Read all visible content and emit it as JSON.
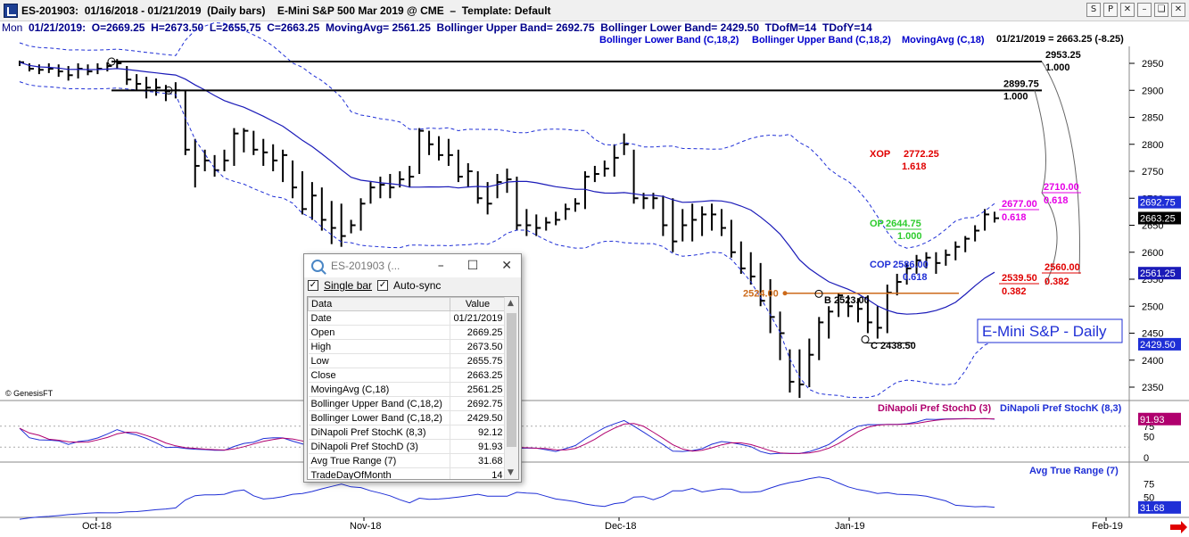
{
  "window": {
    "title": "ES-201903:  01/16/2018 - 01/21/2019  (Daily bars)    E-Mini S&P 500 Mar 2019 @ CME  –  Template: Default",
    "buttons": [
      "S",
      "P",
      "✕",
      "–",
      "❏",
      "✕"
    ]
  },
  "infobar": {
    "day": "Mon",
    "text": "  01/21/2019:  O=2669.25  H=2673.50  L=2655.75  C=2663.25  MovingAvg= 2561.25  Bollinger Upper Band= 2692.75  Bollinger Lower Band= 2429.50  TDofM=14  TDofY=14"
  },
  "legend": {
    "lower": "Bollinger Lower Band (C,18,2)",
    "upper": "Bollinger Upper Band (C,18,2)",
    "ma": "MovingAvg (C,18)",
    "last": "01/21/2019 = 2663.25 (-8.25)"
  },
  "watermark": "© GenesisFT",
  "colors": {
    "price": "#000000",
    "band": "#1f2fd6",
    "ma": "#1a1ab8",
    "fib_red": "#e00000",
    "fib_green": "#2ecc2e",
    "fib_magenta": "#e600e6",
    "stoch_k": "#1f2fd6",
    "stoch_d": "#b0006e",
    "orange": "#cc6a1a"
  },
  "chart_data": [
    {
      "type": "ohlc",
      "title": "E-Mini S&P - Daily",
      "y_ticks": [
        2350,
        2400,
        2450,
        2500,
        2550,
        2600,
        2650,
        2700,
        2750,
        2800,
        2850,
        2900,
        2950
      ],
      "ylim": [
        2325,
        2975
      ],
      "x_labels": [
        "Oct-18",
        "Nov-18",
        "Dec-18",
        "Jan-19",
        "Feb-19"
      ],
      "bars": [
        [
          2955,
          2945,
          2952
        ],
        [
          2950,
          2935,
          2940
        ],
        [
          2948,
          2930,
          2938
        ],
        [
          2950,
          2932,
          2940
        ],
        [
          2948,
          2925,
          2935
        ],
        [
          2945,
          2918,
          2928
        ],
        [
          2950,
          2922,
          2940
        ],
        [
          2948,
          2928,
          2935
        ],
        [
          2950,
          2930,
          2940
        ],
        [
          2952,
          2935,
          2945
        ],
        [
          2958,
          2940,
          2950
        ],
        [
          2945,
          2910,
          2920
        ],
        [
          2930,
          2900,
          2912
        ],
        [
          2925,
          2885,
          2905
        ],
        [
          2922,
          2890,
          2905
        ],
        [
          2910,
          2880,
          2898
        ],
        [
          2915,
          2885,
          2900
        ],
        [
          2900,
          2780,
          2790
        ],
        [
          2810,
          2720,
          2760
        ],
        [
          2790,
          2750,
          2770
        ],
        [
          2780,
          2740,
          2752
        ],
        [
          2790,
          2750,
          2770
        ],
        [
          2830,
          2760,
          2820
        ],
        [
          2830,
          2785,
          2825
        ],
        [
          2825,
          2780,
          2790
        ],
        [
          2810,
          2760,
          2785
        ],
        [
          2800,
          2750,
          2770
        ],
        [
          2790,
          2730,
          2780
        ],
        [
          2770,
          2700,
          2720
        ],
        [
          2750,
          2670,
          2680
        ],
        [
          2730,
          2660,
          2705
        ],
        [
          2720,
          2640,
          2660
        ],
        [
          2695,
          2615,
          2645
        ],
        [
          2690,
          2610,
          2630
        ],
        [
          2660,
          2635,
          2650
        ],
        [
          2700,
          2640,
          2690
        ],
        [
          2730,
          2690,
          2720
        ],
        [
          2740,
          2700,
          2725
        ],
        [
          2745,
          2700,
          2720
        ],
        [
          2750,
          2720,
          2735
        ],
        [
          2760,
          2720,
          2740
        ],
        [
          2830,
          2745,
          2825
        ],
        [
          2825,
          2780,
          2800
        ],
        [
          2815,
          2770,
          2780
        ],
        [
          2810,
          2760,
          2780
        ],
        [
          2790,
          2730,
          2740
        ],
        [
          2765,
          2720,
          2750
        ],
        [
          2750,
          2690,
          2700
        ],
        [
          2730,
          2670,
          2690
        ],
        [
          2745,
          2700,
          2730
        ],
        [
          2755,
          2710,
          2735
        ],
        [
          2740,
          2640,
          2650
        ],
        [
          2680,
          2630,
          2650
        ],
        [
          2670,
          2630,
          2645
        ],
        [
          2665,
          2640,
          2655
        ],
        [
          2675,
          2650,
          2660
        ],
        [
          2690,
          2660,
          2680
        ],
        [
          2700,
          2675,
          2690
        ],
        [
          2750,
          2680,
          2740
        ],
        [
          2760,
          2730,
          2745
        ],
        [
          2770,
          2740,
          2755
        ],
        [
          2800,
          2740,
          2775
        ],
        [
          2820,
          2780,
          2800
        ],
        [
          2790,
          2690,
          2700
        ],
        [
          2710,
          2680,
          2700
        ],
        [
          2710,
          2680,
          2700
        ],
        [
          2705,
          2630,
          2650
        ],
        [
          2700,
          2600,
          2620
        ],
        [
          2680,
          2620,
          2650
        ],
        [
          2690,
          2620,
          2660
        ],
        [
          2685,
          2630,
          2670
        ],
        [
          2690,
          2640,
          2670
        ],
        [
          2680,
          2630,
          2645
        ],
        [
          2660,
          2590,
          2600
        ],
        [
          2620,
          2560,
          2570
        ],
        [
          2600,
          2540,
          2555
        ],
        [
          2580,
          2500,
          2510
        ],
        [
          2550,
          2450,
          2480
        ],
        [
          2490,
          2400,
          2450
        ],
        [
          2420,
          2340,
          2360
        ],
        [
          2420,
          2330,
          2355
        ],
        [
          2440,
          2350,
          2410
        ],
        [
          2480,
          2400,
          2470
        ],
        [
          2500,
          2440,
          2490
        ],
        [
          2525,
          2480,
          2520
        ],
        [
          2520,
          2480,
          2500
        ],
        [
          2515,
          2470,
          2495
        ],
        [
          2520,
          2450,
          2470
        ],
        [
          2500,
          2440,
          2460
        ],
        [
          2540,
          2450,
          2525
        ],
        [
          2560,
          2520,
          2545
        ],
        [
          2580,
          2540,
          2570
        ],
        [
          2595,
          2560,
          2585
        ],
        [
          2600,
          2570,
          2590
        ],
        [
          2600,
          2560,
          2580
        ],
        [
          2605,
          2575,
          2595
        ],
        [
          2620,
          2585,
          2610
        ],
        [
          2630,
          2600,
          2625
        ],
        [
          2650,
          2620,
          2640
        ],
        [
          2680,
          2640,
          2670
        ],
        [
          2675,
          2655,
          2663
        ]
      ],
      "levels": [
        {
          "price": 2953.25,
          "ratio": "1.000"
        },
        {
          "price": 2899.75,
          "ratio": "1.000"
        }
      ],
      "annotations": {
        "xop": "XOP",
        "xop_val": "2772.25",
        "xop_ratio": "1.618",
        "op": "OP",
        "op_val": "2644.75",
        "op_ratio": "1.000",
        "cop": "COP",
        "cop_val": "2586.00",
        "cop_ratio": "0.618",
        "m_2710": "2710.00",
        "m_2710_r": "0.618",
        "m_2677": "2677.00",
        "m_2677_r": "0.618",
        "r_2539": "2539.50",
        "r_2539_r": "0.382",
        "r_2560": "2560.00",
        "r_2560_r": "0.382",
        "a_2524": "2524.00",
        "b_label": "B 2523.00",
        "c_label": "C 2438.50"
      },
      "price_tags": [
        {
          "label": "2692.75",
          "value": 2692.75,
          "color": "#1f2fd6"
        },
        {
          "label": "2663.25",
          "value": 2663.25,
          "color": "#000000"
        },
        {
          "label": "2561.25",
          "value": 2561.25,
          "color": "#1a1ab8"
        },
        {
          "label": "2429.50",
          "value": 2429.5,
          "color": "#1f2fd6"
        }
      ]
    },
    {
      "type": "line",
      "title": "DiNapoli Pref StochD (3)",
      "title2": "DiNapoli Pref StochK (8,3)",
      "y_ticks": [
        0,
        50
      ],
      "last_tag": "91.93",
      "tick_75": "75"
    },
    {
      "type": "line",
      "title": "Avg True Range (7)",
      "y_ticks": [
        25,
        50,
        75
      ],
      "last_tag": "31.68"
    }
  ],
  "datawin": {
    "title": "ES-201903 (...",
    "single_bar": "Single bar",
    "auto_sync": "Auto-sync",
    "col_data": "Data",
    "col_value": "Value",
    "rows": [
      [
        "Date",
        "01/21/2019"
      ],
      [
        "Open",
        "2669.25"
      ],
      [
        "High",
        "2673.50"
      ],
      [
        "Low",
        "2655.75"
      ],
      [
        "Close",
        "2663.25"
      ],
      [
        "MovingAvg (C,18)",
        "2561.25"
      ],
      [
        "Bollinger Upper Band (C,18,2)",
        "2692.75"
      ],
      [
        "Bollinger Lower Band (C,18,2)",
        "2429.50"
      ],
      [
        "DiNapoli Pref StochK (8,3)",
        "92.12"
      ],
      [
        "DiNapoli Pref StochD (3)",
        "91.93"
      ],
      [
        "Avg True Range (7)",
        "31.68"
      ],
      [
        "TradeDayOfMonth",
        "14"
      ]
    ]
  }
}
